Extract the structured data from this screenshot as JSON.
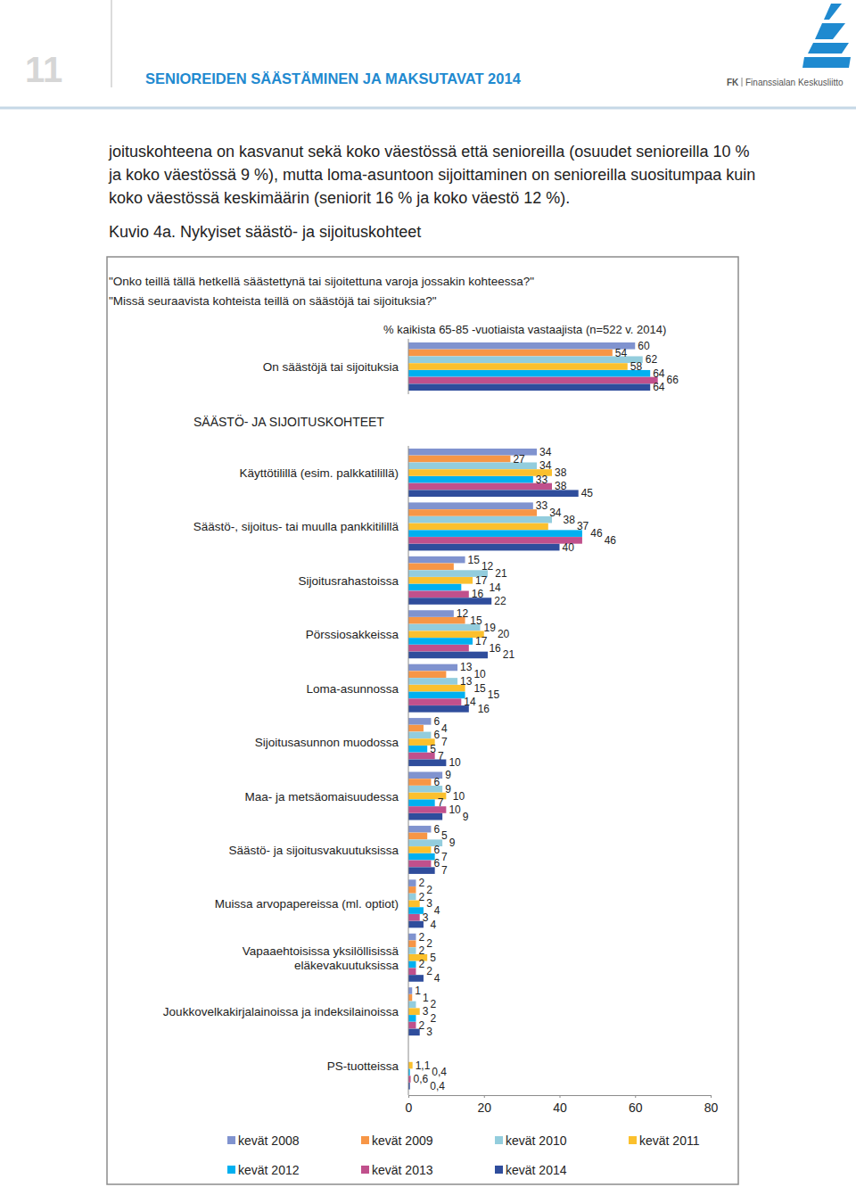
{
  "page": {
    "page_number": "11",
    "header": "SENIOREIDEN SÄÄSTÄMINEN JA MAKSUTAVAT 2014",
    "logo_short": "FK",
    "logo_name": "Finanssialan Keskusliitto",
    "paragraph": [
      "joituskohteena on kasvanut sekä koko väestössä että senioreilla (osuudet senioreilla 10 %",
      "ja koko väestössä 9 %), mutta loma-asuntoon sijoittaminen on senioreilla suositumpaa kuin",
      "koko väestössä keskimäärin (seniorit 16 % ja koko väestö 12 %)."
    ],
    "figure_caption": "Kuvio 4a. Nykyiset säästö- ja sijoituskohteet"
  },
  "chart_data": {
    "type": "bar",
    "orientation": "horizontal",
    "data_labels": true,
    "grid": false,
    "legend": "bottom",
    "title": "\"Onko teillä tällä hetkellä säästettynä tai sijoitettuna varoja jossakin kohteessa?\"",
    "subtitle": "\"Missä seuraavista kohteista teillä on säästöjä tai sijoituksia?\"",
    "xlabel": "% kaikista 65-85 -vuotiaista vastaajista (n=522 v. 2014)",
    "annotations": [
      {
        "text": "SÄÄSTÖ- JA SIJOITUSKOHTEET"
      }
    ],
    "categories": [
      "On säästöjä tai sijoituksia",
      "Käyttötilillä (esim. palkkatilillä)",
      "Säästö-, sijoitus- tai muulla pankkitilillä",
      "Sijoitusrahastoissa",
      "Pörssiosakkeissa",
      "Loma-asunnossa",
      "Sijoitusasunnon muodossa",
      "Maa- ja metsäomaisuudessa",
      "Säästö- ja sijoitusvakuutuksissa",
      "Muissa arvopapereissa (ml. optiot)",
      "Vapaaehtoisissa yksilöllisissä\neläkevakuutuksissa",
      "Joukkovelkakirjalainoissa ja indeksilainoissa",
      "PS-tuotteissa"
    ],
    "xlim": [
      0,
      80
    ],
    "xticks": [
      0,
      20,
      40,
      60,
      80
    ],
    "series": [
      {
        "name": "kevät 2008",
        "color": "#8093cf",
        "values": [
          60,
          34,
          33,
          15,
          12,
          13,
          6,
          9,
          6,
          2,
          2,
          1,
          null
        ],
        "value_labels": [
          "60",
          "34",
          "33",
          "15",
          "12",
          "13",
          "6",
          "9",
          "6",
          "2",
          "2",
          "1",
          null
        ]
      },
      {
        "name": "kevät 2009",
        "color": "#f79646",
        "values": [
          54,
          27,
          34,
          12,
          15,
          10,
          4,
          6,
          5,
          2,
          2,
          1,
          null
        ],
        "value_labels": [
          "54",
          "27",
          "34",
          "12",
          "15",
          "10",
          "4",
          "6",
          "5",
          "2",
          "2",
          "1",
          null
        ]
      },
      {
        "name": "kevät 2010",
        "color": "#93cddd",
        "values": [
          62,
          34,
          38,
          21,
          19,
          13,
          6,
          9,
          9,
          2,
          2,
          2,
          null
        ],
        "value_labels": [
          "62",
          "34",
          "38",
          "21",
          "19",
          "13",
          "6",
          "9",
          "9",
          "2",
          "2",
          "2",
          null
        ]
      },
      {
        "name": "kevät 2011",
        "color": "#fbc02d",
        "values": [
          58,
          38,
          37,
          17,
          20,
          15,
          7,
          10,
          6,
          3,
          5,
          3,
          1.1
        ],
        "value_labels": [
          "58",
          "38",
          "37",
          "17",
          "20",
          "15",
          "7",
          "10",
          "6",
          "3",
          "5",
          "3",
          "1,1"
        ]
      },
      {
        "name": "kevät 2012",
        "color": "#00b0f0",
        "values": [
          64,
          33,
          46,
          14,
          17,
          15,
          5,
          7,
          7,
          4,
          2,
          2,
          0.4
        ],
        "value_labels": [
          "64",
          "33",
          "46",
          "14",
          "17",
          "15",
          "5",
          "7",
          "7",
          "4",
          "2",
          "2",
          "0,4"
        ]
      },
      {
        "name": "kevät 2013",
        "color": "#c0508c",
        "values": [
          66,
          38,
          46,
          16,
          16,
          14,
          7,
          10,
          6,
          3,
          2,
          2,
          0.6
        ],
        "value_labels": [
          "66",
          "38",
          "46",
          "16",
          "16",
          "14",
          "7",
          "10",
          "6",
          "3",
          "2",
          "2",
          "0,6"
        ]
      },
      {
        "name": "kevät 2014",
        "color": "#2f4d9c",
        "values": [
          64,
          45,
          40,
          22,
          21,
          16,
          10,
          9,
          7,
          4,
          4,
          3,
          0.4
        ],
        "value_labels": [
          "64",
          "45",
          "40",
          "22",
          "21",
          "16",
          "10",
          "9",
          "7",
          "4",
          "4",
          "3",
          "0,4"
        ]
      }
    ]
  }
}
